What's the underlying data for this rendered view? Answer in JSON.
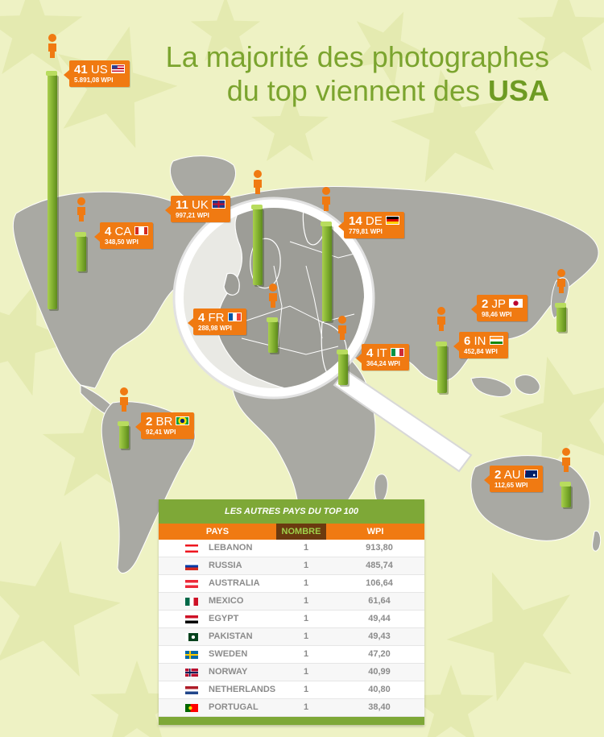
{
  "title": {
    "line1": "La majorité des photographes",
    "line2_prefix": "du top viennent des ",
    "line2_bold": "USA"
  },
  "colors": {
    "accent_orange": "#f07a12",
    "accent_green": "#7ea837",
    "background": "#eef2c4",
    "map_gray": "#a9a9a3"
  },
  "markers": [
    {
      "id": "us",
      "count": "41",
      "code": "US",
      "wpi": "5.891,08 WPI",
      "flag": "us-flag"
    },
    {
      "id": "ca",
      "count": "4",
      "code": "CA",
      "wpi": "348,50 WPI",
      "flag": "ca-flag"
    },
    {
      "id": "uk",
      "count": "11",
      "code": "UK",
      "wpi": "997,21 WPI",
      "flag": "uk-flag"
    },
    {
      "id": "de",
      "count": "14",
      "code": "DE",
      "wpi": "779,81 WPI",
      "flag": "de-flag"
    },
    {
      "id": "fr",
      "count": "4",
      "code": "FR",
      "wpi": "288,98 WPI",
      "flag": "fr-flag"
    },
    {
      "id": "it",
      "count": "4",
      "code": "IT",
      "wpi": "364,24 WPI",
      "flag": "it-flag"
    },
    {
      "id": "jp",
      "count": "2",
      "code": "JP",
      "wpi": "98,46 WPI",
      "flag": "jp-flag"
    },
    {
      "id": "in",
      "count": "6",
      "code": "IN",
      "wpi": "452,84 WPI",
      "flag": "in-flag"
    },
    {
      "id": "br",
      "count": "2",
      "code": "BR",
      "wpi": "92,41 WPI",
      "flag": "br-flag"
    },
    {
      "id": "au",
      "count": "2",
      "code": "AU",
      "wpi": "112,65 WPI",
      "flag": "au-flag"
    }
  ],
  "table": {
    "heading": "LES AUTRES PAYS DU TOP 100",
    "columns": {
      "pays": "PAYS",
      "nombre": "NOMBRE",
      "wpi": "WPI"
    },
    "rows": [
      {
        "country": "LEBANON",
        "count": "1",
        "wpi": "913,80",
        "flag": "lebanon-flag"
      },
      {
        "country": "RUSSIA",
        "count": "1",
        "wpi": "485,74",
        "flag": "russia-flag"
      },
      {
        "country": "AUSTRALIA",
        "count": "1",
        "wpi": "106,64",
        "flag": "austria-flag"
      },
      {
        "country": "MEXICO",
        "count": "1",
        "wpi": "61,64",
        "flag": "mexico-flag"
      },
      {
        "country": "EGYPT",
        "count": "1",
        "wpi": "49,44",
        "flag": "egypt-flag"
      },
      {
        "country": "PAKISTAN",
        "count": "1",
        "wpi": "49,43",
        "flag": "pakistan-flag"
      },
      {
        "country": "SWEDEN",
        "count": "1",
        "wpi": "47,20",
        "flag": "sweden-flag"
      },
      {
        "country": "NORWAY",
        "count": "1",
        "wpi": "40,99",
        "flag": "norway-flag"
      },
      {
        "country": "NETHERLANDS",
        "count": "1",
        "wpi": "40,80",
        "flag": "netherlands-flag"
      },
      {
        "country": "PORTUGAL",
        "count": "1",
        "wpi": "38,40",
        "flag": "portugal-flag"
      }
    ]
  }
}
